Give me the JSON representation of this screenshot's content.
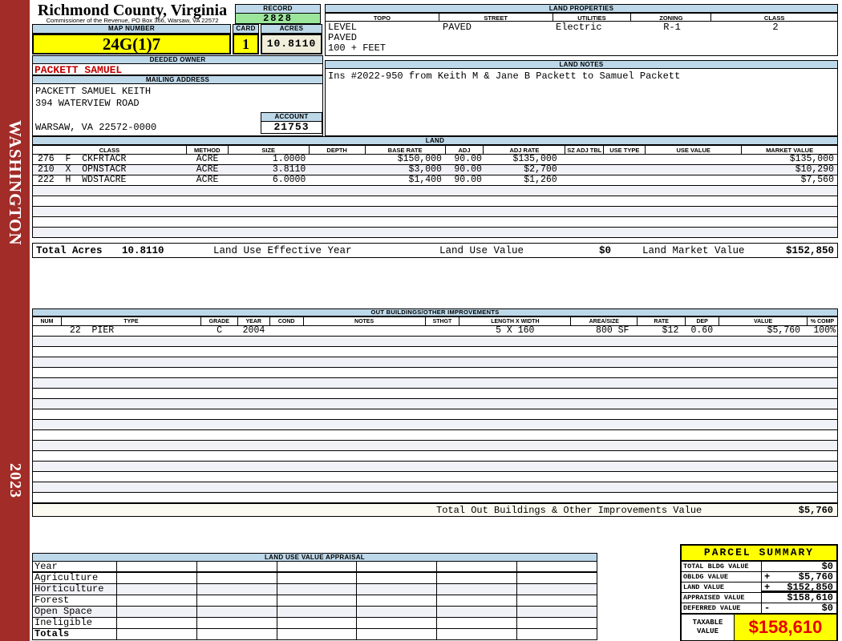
{
  "sidebar": {
    "district": "WASHINGTON",
    "year": "2023"
  },
  "header": {
    "county": "Richmond County, Virginia",
    "commissioner": "Commissioner of the Revenue, PO Box 366, Warsaw, VA 22572",
    "record_label": "RECORD",
    "record": "2828",
    "map_number_label": "MAP NUMBER",
    "map_number": "24G(1)7",
    "card_label": "CARD",
    "card": "1",
    "acres_label": "ACRES",
    "acres": "10.8110",
    "deeded_owner_label": "DEEDED OWNER",
    "deeded_owner": "PACKETT SAMUEL",
    "mailing_label": "MAILING ADDRESS",
    "mailing_lines": [
      "PACKETT SAMUEL KEITH",
      "394 WATERVIEW ROAD",
      "",
      "WARSAW, VA 22572-0000"
    ],
    "account_label": "ACCOUNT",
    "account": "21753"
  },
  "land_properties": {
    "title": "LAND PROPERTIES",
    "columns": [
      "TOPO",
      "STREET",
      "UTILITIES",
      "ZONING",
      "CLASS"
    ],
    "topo_lines": [
      "LEVEL",
      "PAVED",
      "100 + FEET"
    ],
    "street": "PAVED",
    "utilities": "Electric",
    "zoning": "R-1",
    "class": "2"
  },
  "land_notes": {
    "title": "LAND NOTES",
    "note": "Ins #2022-950 from Keith M & Jane B Packett to Samuel Packett"
  },
  "land": {
    "title": "LAND",
    "columns": [
      "CLASS",
      "METHOD",
      "SIZE",
      "DEPTH",
      "BASE RATE",
      "ADJ",
      "ADJ RATE",
      "SZ ADJ TBL",
      "USE TYPE",
      "USE VALUE",
      "MARKET VALUE"
    ],
    "rows": [
      {
        "class": "276  F  CKFRTACR",
        "method": "ACRE",
        "size": "1.0000",
        "depth": "",
        "base_rate": "$150,000",
        "adj": "90.00",
        "adj_rate": "$135,000",
        "sz_adj_tbl": "",
        "use_type": "",
        "use_value": "",
        "market_value": "$135,000"
      },
      {
        "class": "210  X  OPNSTACR",
        "method": "ACRE",
        "size": "3.8110",
        "depth": "",
        "base_rate": "$3,000",
        "adj": "90.00",
        "adj_rate": "$2,700",
        "sz_adj_tbl": "",
        "use_type": "",
        "use_value": "",
        "market_value": "$10,290"
      },
      {
        "class": "222  H  WDSTACRE",
        "method": "ACRE",
        "size": "6.0000",
        "depth": "",
        "base_rate": "$1,400",
        "adj": "90.00",
        "adj_rate": "$1,260",
        "sz_adj_tbl": "",
        "use_type": "",
        "use_value": "",
        "market_value": "$7,560"
      }
    ],
    "empty_rows": 5,
    "totals": {
      "total_acres_label": "Total Acres",
      "total_acres": "10.8110",
      "effective_year_label": "Land Use Effective Year",
      "use_value_label": "Land Use Value",
      "use_value": "$0",
      "market_value_label": "Land Market Value",
      "market_value": "$152,850"
    }
  },
  "out_buildings": {
    "title": "OUT BUILDINGS/OTHER IMPROVEMENTS",
    "columns": [
      "NUM",
      "TYPE",
      "GRADE",
      "YEAR",
      "COND",
      "NOTES",
      "STHGT",
      "LENGTH X WIDTH",
      "AREA/SIZE",
      "RATE",
      "DEP",
      "VALUE",
      "% COMP"
    ],
    "rows": [
      {
        "num": "",
        "type": "22  PIER",
        "grade": "C",
        "year": "2004",
        "cond": "",
        "notes": "",
        "sthgt": "",
        "length_width": "5 X 160",
        "area_size": "800 SF",
        "rate": "$12",
        "dep": "0.60",
        "value": "$5,760",
        "comp": "100%"
      }
    ],
    "empty_rows": 16,
    "total_label": "Total Out Buildings & Other Improvements Value",
    "total_value": "$5,760"
  },
  "land_use_appraisal": {
    "title": "LAND USE VALUE APPRAISAL",
    "row_labels": [
      "Year",
      "Agriculture",
      "Horticulture",
      "Forest",
      "Open Space",
      "Ineligible",
      "Totals"
    ],
    "columns": 6
  },
  "parcel_summary": {
    "title": "PARCEL SUMMARY",
    "rows": [
      {
        "label": "TOTAL BLDG VALUE",
        "op": "",
        "value": "$0"
      },
      {
        "label": "OBLDG VALUE",
        "op": "+",
        "value": "$5,760"
      },
      {
        "label": "LAND VALUE",
        "op": "+",
        "value": "$152,850"
      },
      {
        "label": "APPRAISED VALUE",
        "op": "",
        "value": "$158,610"
      },
      {
        "label": "DEFERRED VALUE",
        "op": "-",
        "value": "$0"
      }
    ],
    "taxable_label": "TAXABLE VALUE",
    "taxable_value": "$158,610"
  },
  "colors": {
    "header_blue": "#BDD8E9",
    "record_green": "#9CE69C",
    "highlight_yellow": "#FFFF00",
    "cream": "#F0EDDA",
    "sidebar_red": "#A22C28",
    "owner_red": "#C00000",
    "taxable_red": "#E60000",
    "stripe": "#F1F1F8"
  }
}
